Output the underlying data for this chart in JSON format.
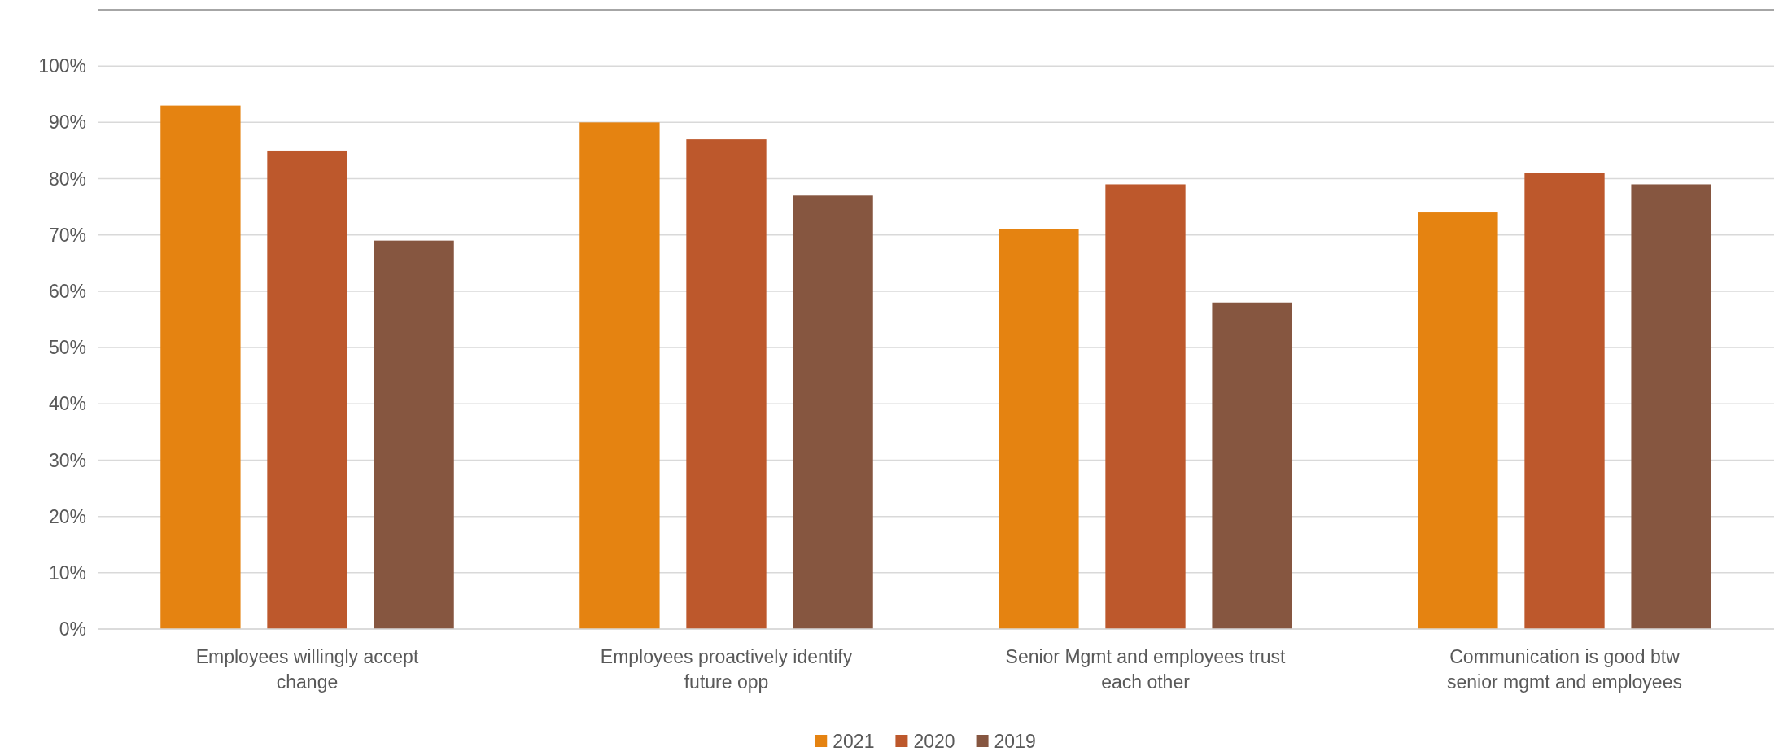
{
  "chart_data": {
    "type": "bar",
    "categories": [
      "Employees willingly accept change",
      "Employees proactively identify future opp",
      "Senior Mgmt and employees trust each other",
      "Communication is good btw senior mgmt and employees"
    ],
    "series": [
      {
        "name": "2021",
        "color": "#e58311",
        "values": [
          93,
          90,
          71,
          74
        ]
      },
      {
        "name": "2020",
        "color": "#bd582c",
        "values": [
          85,
          87,
          79,
          81
        ]
      },
      {
        "name": "2019",
        "color": "#865640",
        "values": [
          69,
          77,
          58,
          79
        ]
      }
    ],
    "ylim": [
      0,
      110
    ],
    "yticks": [
      {
        "value": 0,
        "label": "0%"
      },
      {
        "value": 10,
        "label": "10%"
      },
      {
        "value": 20,
        "label": "20%"
      },
      {
        "value": 30,
        "label": "30%"
      },
      {
        "value": 40,
        "label": "40%"
      },
      {
        "value": 50,
        "label": "50%"
      },
      {
        "value": 60,
        "label": "60%"
      },
      {
        "value": 70,
        "label": "70%"
      },
      {
        "value": 80,
        "label": "80%"
      },
      {
        "value": 90,
        "label": "90%"
      },
      {
        "value": 100,
        "label": "100%"
      },
      {
        "value": 110,
        "label": null
      }
    ],
    "grid": "y",
    "legend": "bottom"
  }
}
